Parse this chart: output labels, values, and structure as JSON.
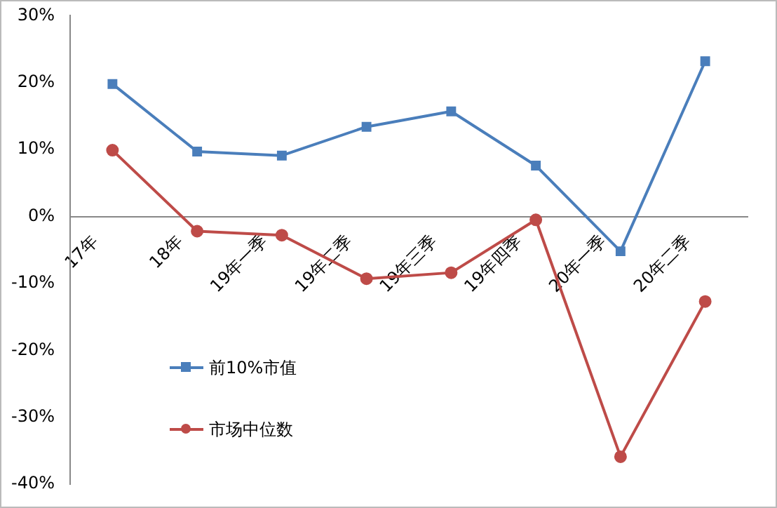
{
  "chart_data": {
    "type": "line",
    "categories": [
      "17年",
      "18年",
      "19年一季",
      "19年二季",
      "19年三季",
      "19年四季",
      "20年一季",
      "20年二季"
    ],
    "series": [
      {
        "name": "前10%市值",
        "color": "#4a7ebb",
        "marker": "square",
        "values": [
          19.8,
          9.7,
          9.1,
          13.4,
          15.7,
          7.6,
          -5.2,
          23.2
        ]
      },
      {
        "name": "市场中位数",
        "color": "#be4b48",
        "marker": "circle",
        "values": [
          9.9,
          -2.2,
          -2.8,
          -9.3,
          -8.4,
          -0.5,
          -35.9,
          -12.7
        ]
      }
    ],
    "ylim": [
      -40,
      30
    ],
    "yticks": [
      {
        "value": -40,
        "label": "-40%"
      },
      {
        "value": -30,
        "label": "-30%"
      },
      {
        "value": -20,
        "label": "-20%"
      },
      {
        "value": -10,
        "label": "-10%"
      },
      {
        "value": 0,
        "label": "0%"
      },
      {
        "value": 10,
        "label": "10%"
      },
      {
        "value": 20,
        "label": "20%"
      },
      {
        "value": 30,
        "label": "30%"
      }
    ],
    "grid": false,
    "legend": "bottom left",
    "line_style": "solid"
  }
}
